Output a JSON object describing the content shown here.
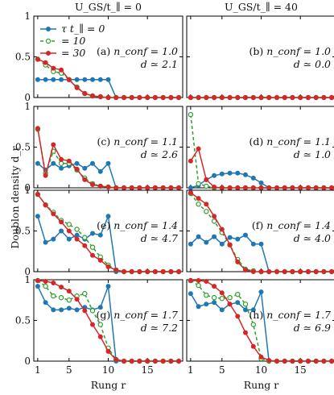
{
  "chart_data": {
    "type": "line",
    "column_titles": [
      "U_GS/t_∥ = 0",
      "U_GS/t_∥ = 40"
    ],
    "xlabel": "Rung r",
    "ylabel": "Doublon density d_r",
    "xlim": [
      0.5,
      19.5
    ],
    "ylim": [
      0,
      1
    ],
    "xticks": [
      1,
      5,
      10,
      15
    ],
    "yticks": [
      0,
      0.5,
      1
    ],
    "ytick_labels": [
      "0",
      "0.5",
      "1"
    ],
    "x": [
      1,
      2,
      3,
      4,
      5,
      6,
      7,
      8,
      9,
      10,
      11,
      12,
      13,
      14,
      15,
      16,
      17,
      18,
      19
    ],
    "legend": {
      "placement": "top-left of panel (a)",
      "entries": [
        {
          "label": "τ t_∥ = 0",
          "color": "#1f77b4"
        },
        {
          "label": "= 10",
          "color": "#2ca02c"
        },
        {
          "label": "= 30",
          "color": "#d62728"
        }
      ]
    },
    "series_styles": [
      {
        "color": "#1f77b4",
        "dash": "none",
        "marker": "circle"
      },
      {
        "color": "#2ca02c",
        "dash": "4 3",
        "marker": "open-circle"
      },
      {
        "color": "#d62728",
        "dash": "none",
        "marker": "circle"
      }
    ],
    "panels": [
      {
        "id": "(a)",
        "row": 0,
        "col": 0,
        "n_conf": "1.0",
        "d": "2.1",
        "series": [
          {
            "values": [
              0.22,
              0.22,
              0.22,
              0.22,
              0.22,
              0.22,
              0.22,
              0.22,
              0.22,
              0.22,
              0.0,
              0,
              0,
              0,
              0,
              0,
              0,
              0,
              0
            ]
          },
          {
            "values": [
              0.47,
              0.4,
              0.32,
              0.3,
              0.22,
              0.13,
              0.05,
              0.02,
              0.01,
              0,
              0,
              0,
              0,
              0,
              0,
              0,
              0,
              0,
              0
            ]
          },
          {
            "values": [
              0.47,
              0.43,
              0.36,
              0.34,
              0.22,
              0.12,
              0.05,
              0.02,
              0.01,
              0,
              0,
              0,
              0,
              0,
              0,
              0,
              0,
              0,
              0
            ]
          }
        ]
      },
      {
        "id": "(b)",
        "row": 0,
        "col": 1,
        "n_conf": "1.0",
        "d": "0.0",
        "series": [
          {
            "values": [
              0,
              0,
              0,
              0,
              0,
              0,
              0,
              0,
              0,
              0,
              0,
              0,
              0,
              0,
              0,
              0,
              0,
              0,
              0
            ]
          },
          {
            "values": [
              0,
              0,
              0,
              0,
              0,
              0,
              0,
              0,
              0,
              0,
              0,
              0,
              0,
              0,
              0,
              0,
              0,
              0,
              0
            ]
          },
          {
            "values": [
              0,
              0,
              0,
              0,
              0,
              0,
              0,
              0,
              0,
              0,
              0,
              0,
              0,
              0,
              0,
              0,
              0,
              0,
              0
            ]
          }
        ]
      },
      {
        "id": "(c)",
        "row": 1,
        "col": 0,
        "n_conf": "1.1",
        "d": "2.6",
        "series": [
          {
            "values": [
              0.3,
              0.22,
              0.3,
              0.24,
              0.27,
              0.3,
              0.24,
              0.3,
              0.2,
              0.3,
              0.0,
              0,
              0,
              0,
              0,
              0,
              0,
              0,
              0
            ]
          },
          {
            "values": [
              0.72,
              0.18,
              0.45,
              0.3,
              0.3,
              0.22,
              0.12,
              0.05,
              0.02,
              0.01,
              0,
              0,
              0,
              0,
              0,
              0,
              0,
              0,
              0
            ]
          },
          {
            "values": [
              0.73,
              0.15,
              0.53,
              0.35,
              0.33,
              0.23,
              0.1,
              0.04,
              0.02,
              0.01,
              0,
              0,
              0,
              0,
              0,
              0,
              0,
              0,
              0
            ]
          }
        ]
      },
      {
        "id": "(d)",
        "row": 1,
        "col": 1,
        "n_conf": "1.1",
        "d": "1.0",
        "series": [
          {
            "values": [
              0,
              0.03,
              0.1,
              0.15,
              0.17,
              0.18,
              0.18,
              0.16,
              0.12,
              0.06,
              0,
              0,
              0,
              0,
              0,
              0,
              0,
              0,
              0
            ]
          },
          {
            "values": [
              0.9,
              0.05,
              0.02,
              0,
              0,
              0,
              0,
              0,
              0,
              0,
              0,
              0,
              0,
              0,
              0,
              0,
              0,
              0,
              0
            ]
          },
          {
            "values": [
              0.33,
              0.48,
              0.1,
              0.01,
              0,
              0,
              0,
              0,
              0,
              0,
              0,
              0,
              0,
              0,
              0,
              0,
              0,
              0,
              0
            ]
          }
        ]
      },
      {
        "id": "(e)",
        "row": 2,
        "col": 0,
        "n_conf": "1.4",
        "d": "4.7",
        "series": [
          {
            "values": [
              0.68,
              0.36,
              0.4,
              0.5,
              0.4,
              0.45,
              0.4,
              0.47,
              0.45,
              0.68,
              0.0,
              0,
              0,
              0,
              0,
              0,
              0,
              0,
              0
            ]
          },
          {
            "values": [
              0.95,
              0.82,
              0.73,
              0.63,
              0.58,
              0.52,
              0.42,
              0.3,
              0.18,
              0.08,
              0.02,
              0,
              0,
              0,
              0,
              0,
              0,
              0,
              0
            ]
          },
          {
            "values": [
              0.95,
              0.82,
              0.71,
              0.61,
              0.5,
              0.4,
              0.32,
              0.2,
              0.14,
              0.06,
              0.02,
              0,
              0,
              0,
              0,
              0,
              0,
              0,
              0
            ]
          }
        ]
      },
      {
        "id": "(f)",
        "row": 2,
        "col": 1,
        "n_conf": "1.4",
        "d": "4.0",
        "series": [
          {
            "values": [
              0.34,
              0.43,
              0.36,
              0.43,
              0.34,
              0.42,
              0.4,
              0.45,
              0.34,
              0.34,
              0.0,
              0,
              0,
              0,
              0,
              0,
              0,
              0,
              0
            ]
          },
          {
            "values": [
              0.96,
              0.83,
              0.74,
              0.62,
              0.48,
              0.33,
              0.15,
              0.03,
              0.01,
              0,
              0,
              0,
              0,
              0,
              0,
              0,
              0,
              0,
              0
            ]
          },
          {
            "values": [
              0.97,
              0.9,
              0.83,
              0.68,
              0.52,
              0.33,
              0.12,
              0.02,
              0.0,
              0,
              0,
              0,
              0,
              0,
              0,
              0,
              0,
              0,
              0
            ]
          }
        ]
      },
      {
        "id": "(g)",
        "row": 3,
        "col": 0,
        "n_conf": "1.7",
        "d": "7.2",
        "series": [
          {
            "values": [
              0.92,
              0.72,
              0.63,
              0.63,
              0.65,
              0.63,
              0.66,
              0.63,
              0.66,
              0.92,
              0.0,
              0,
              0,
              0,
              0,
              0,
              0,
              0,
              0
            ]
          },
          {
            "values": [
              0.99,
              0.92,
              0.8,
              0.78,
              0.75,
              0.8,
              0.83,
              0.62,
              0.45,
              0.16,
              0.02,
              0,
              0,
              0,
              0,
              0,
              0,
              0,
              0
            ]
          },
          {
            "values": [
              0.99,
              0.98,
              0.96,
              0.91,
              0.86,
              0.76,
              0.62,
              0.45,
              0.3,
              0.12,
              0.02,
              0,
              0,
              0,
              0,
              0,
              0,
              0,
              0
            ]
          }
        ]
      },
      {
        "id": "(h)",
        "row": 3,
        "col": 1,
        "n_conf": "1.7",
        "d": "6.9",
        "series": [
          {
            "values": [
              0.83,
              0.67,
              0.7,
              0.72,
              0.63,
              0.7,
              0.72,
              0.63,
              0.63,
              0.85,
              0.0,
              0,
              0,
              0,
              0,
              0,
              0,
              0,
              0
            ]
          },
          {
            "values": [
              0.99,
              0.93,
              0.81,
              0.78,
              0.77,
              0.78,
              0.82,
              0.7,
              0.45,
              0.03,
              0,
              0,
              0,
              0,
              0,
              0,
              0,
              0,
              0
            ]
          },
          {
            "values": [
              0.99,
              0.99,
              0.98,
              0.92,
              0.84,
              0.7,
              0.55,
              0.35,
              0.18,
              0.05,
              0.01,
              0,
              0,
              0,
              0,
              0,
              0,
              0,
              0
            ]
          }
        ]
      }
    ]
  }
}
